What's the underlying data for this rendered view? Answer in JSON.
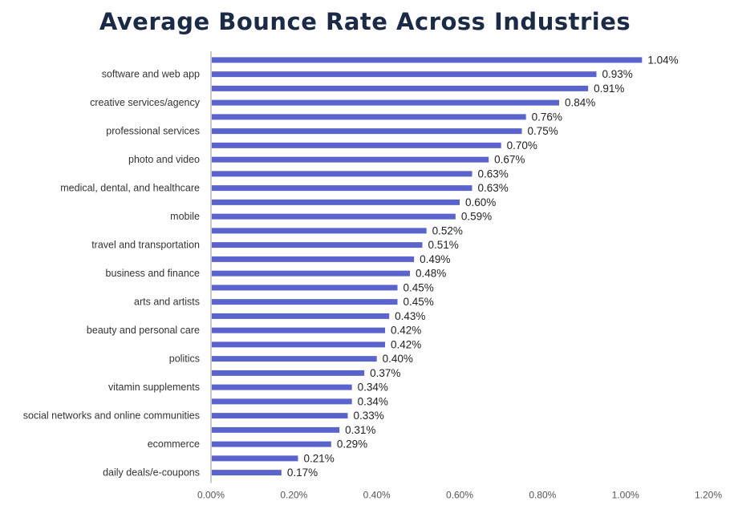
{
  "chart_data": {
    "type": "bar",
    "orientation": "horizontal",
    "title": "Average Bounce Rate Across Industries",
    "categories": [
      "",
      "software and web app",
      "",
      "creative services/agency",
      "",
      "professional services",
      "",
      "photo and video",
      "",
      "medical, dental, and healthcare",
      "",
      "mobile",
      "",
      "travel and transportation",
      "",
      "business and finance",
      "",
      "arts and artists",
      "",
      "beauty and personal care",
      "",
      "politics",
      "",
      "vitamin supplements",
      "",
      "social networks and online communities",
      "",
      "ecommerce",
      "",
      "daily deals/e-coupons"
    ],
    "values": [
      1.04,
      0.93,
      0.91,
      0.84,
      0.76,
      0.75,
      0.7,
      0.67,
      0.63,
      0.63,
      0.6,
      0.59,
      0.52,
      0.51,
      0.49,
      0.48,
      0.45,
      0.45,
      0.43,
      0.42,
      0.42,
      0.4,
      0.37,
      0.34,
      0.34,
      0.33,
      0.31,
      0.29,
      0.21,
      0.17
    ],
    "value_labels": [
      "1.04%",
      "0.93%",
      "0.91%",
      "0.84%",
      "0.76%",
      "0.75%",
      "0.70%",
      "0.67%",
      "0.63%",
      "0.63%",
      "0.60%",
      "0.59%",
      "0.52%",
      "0.51%",
      "0.49%",
      "0.48%",
      "0.45%",
      "0.45%",
      "0.43%",
      "0.42%",
      "0.42%",
      "0.40%",
      "0.37%",
      "0.34%",
      "0.34%",
      "0.33%",
      "0.31%",
      "0.29%",
      "0.21%",
      "0.17%"
    ],
    "x_ticks": [
      0,
      0.2,
      0.4,
      0.6,
      0.8,
      1.0,
      1.2
    ],
    "x_tick_labels": [
      "0.00%",
      "0.20%",
      "0.40%",
      "0.60%",
      "0.80%",
      "1.00%",
      "1.20%"
    ],
    "xlim": [
      0,
      1.2
    ],
    "bar_color": "#5b64cc",
    "axis_color": "#c8c8c8",
    "grid": false,
    "legend": "none"
  }
}
